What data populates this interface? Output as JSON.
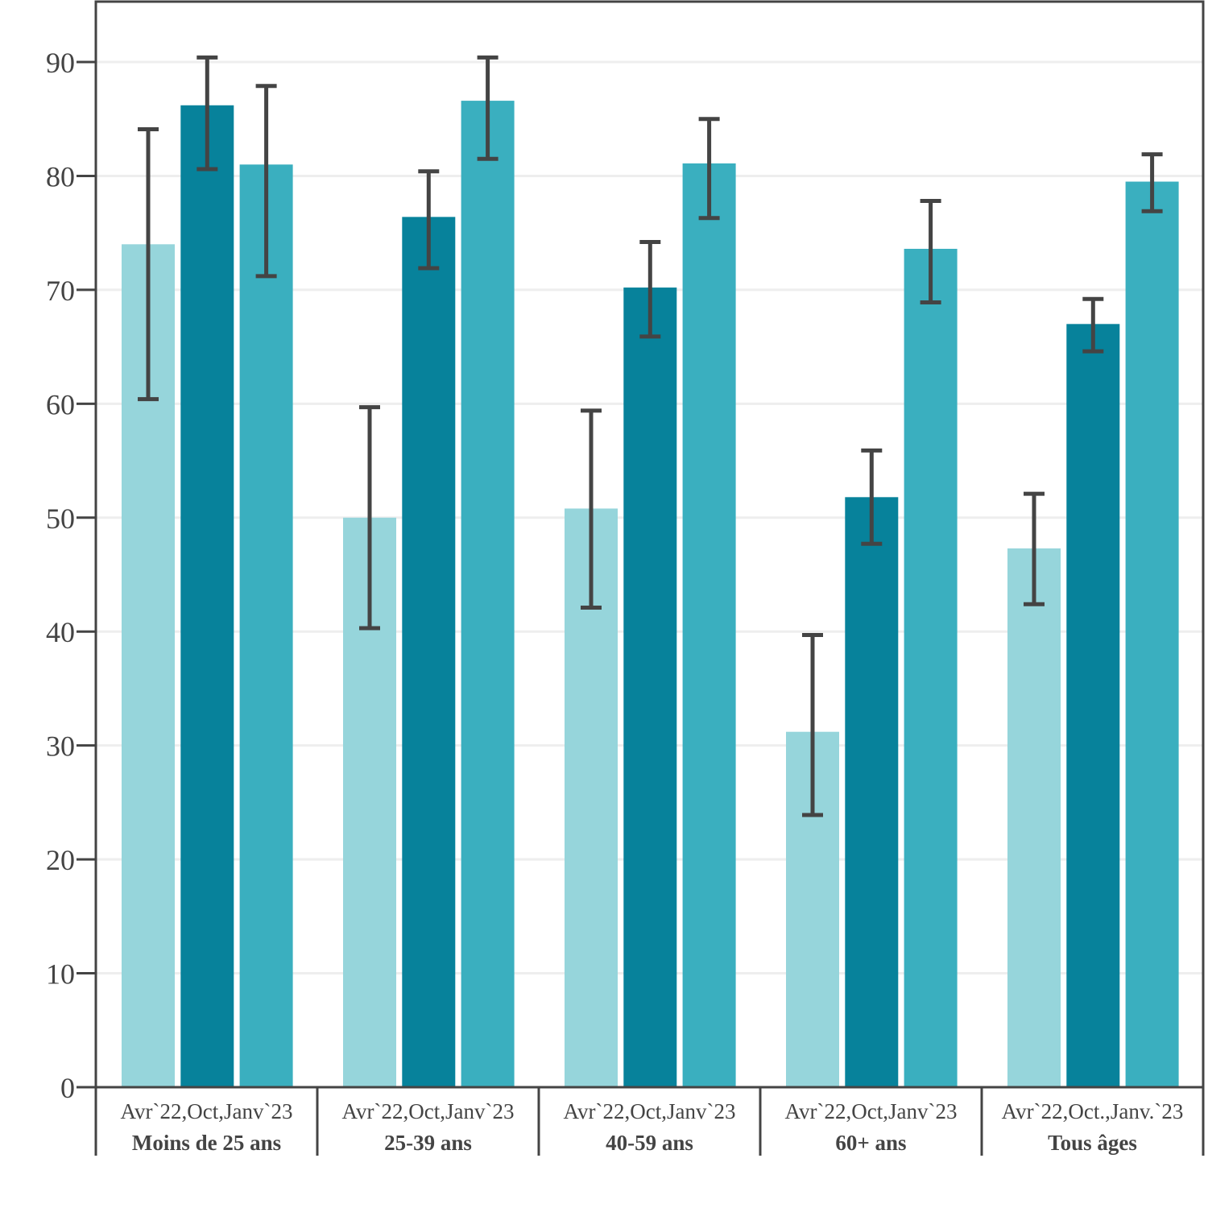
{
  "chart_data": {
    "type": "bar",
    "categories": [
      "Moins de 25 ans",
      "25-39 ans",
      "40-59 ans",
      "60+ ans",
      "Tous âges"
    ],
    "subcategory_labels": [
      "Avr`22,Oct,Janv`23",
      "Avr`22,Oct,Janv`23",
      "Avr`22,Oct,Janv`23",
      "Avr`22,Oct,Janv`23",
      "Avr`22,Oct.,Janv.`23"
    ],
    "series": [
      {
        "values": [
          74.0,
          50.0,
          50.8,
          31.2,
          47.3
        ],
        "error_low": [
          60.4,
          40.3,
          42.1,
          23.9,
          42.4
        ],
        "error_high": [
          84.1,
          59.7,
          59.4,
          39.7,
          52.1
        ],
        "color": "#96d5db"
      },
      {
        "values": [
          86.2,
          76.4,
          70.2,
          51.8,
          67.0
        ],
        "error_low": [
          80.6,
          71.9,
          65.9,
          47.7,
          64.6
        ],
        "error_high": [
          90.4,
          80.4,
          74.2,
          55.9,
          69.2
        ],
        "color": "#07829b"
      },
      {
        "values": [
          81.0,
          86.6,
          81.1,
          73.6,
          79.5
        ],
        "error_low": [
          71.2,
          81.5,
          76.3,
          68.9,
          76.9
        ],
        "error_high": [
          87.9,
          90.4,
          85.0,
          77.8,
          81.9
        ],
        "color": "#3aafbf"
      }
    ],
    "title": "",
    "xlabel": "",
    "ylabel": "",
    "ylim": [
      0,
      95
    ],
    "yticks": [
      "0",
      "10",
      "20",
      "30",
      "40",
      "50",
      "60",
      "70",
      "80",
      "90"
    ],
    "grid": true,
    "legend": "none",
    "colors": {
      "axis": "#444444",
      "grid": "#eeeeee",
      "error_bar": "#444444"
    }
  }
}
